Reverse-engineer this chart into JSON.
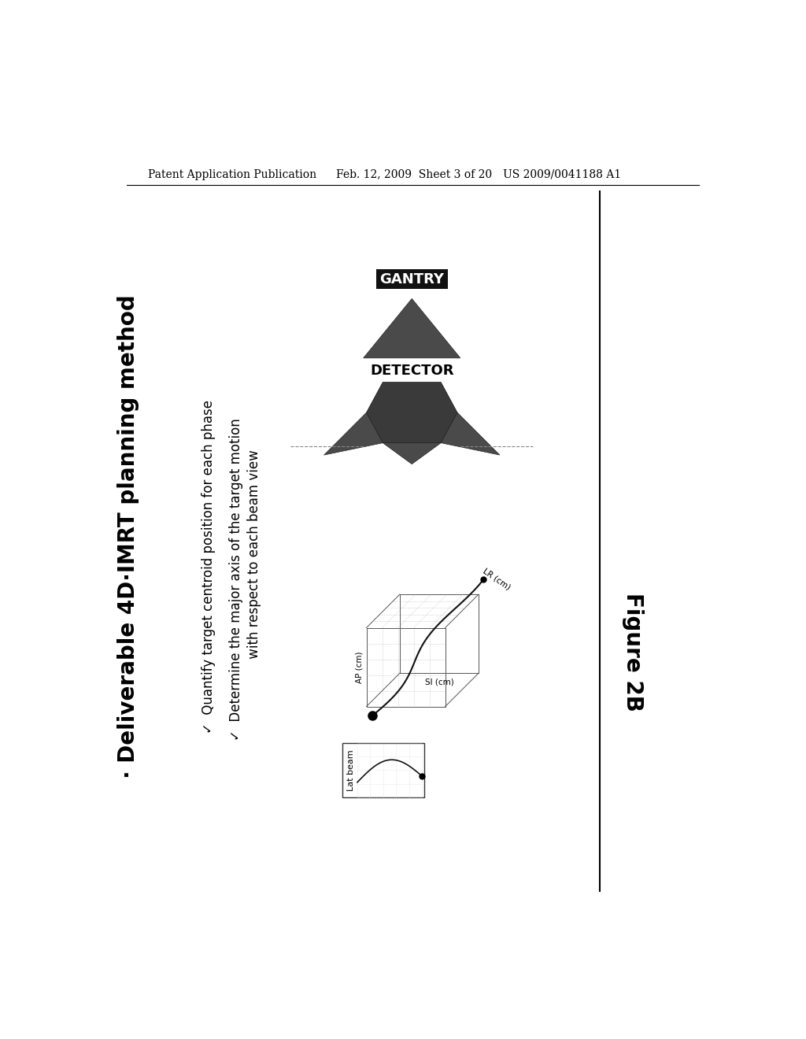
{
  "bg_color": "#ffffff",
  "header_left": "Patent Application Publication",
  "header_mid": "Feb. 12, 2009  Sheet 3 of 20",
  "header_right": "US 2009/0041188 A1",
  "title": "· Deliverable 4D·IMRT planning method",
  "bullet1": "✓  Quantify target centroid position for each phase",
  "bullet2": "✓  Determine the major axis of the target motion",
  "bullet2b": "     with respect to each beam view",
  "gantry_label": "GANTRY",
  "detector_label": "DETECTOR",
  "figure_label": "Figure 2B",
  "lat_beam_label": "Lat beam"
}
